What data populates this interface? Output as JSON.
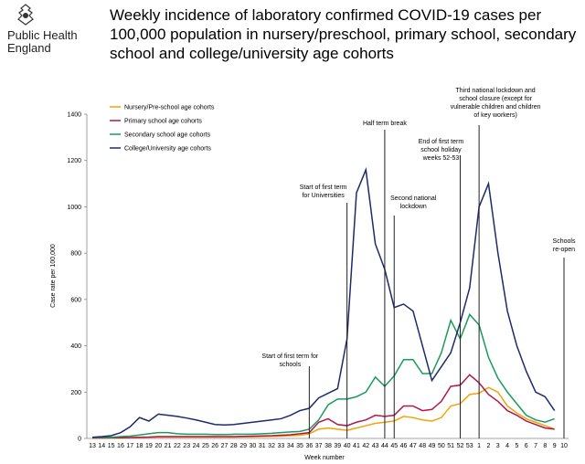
{
  "logo": {
    "lines": [
      "Public Health",
      "England"
    ]
  },
  "chart_data": {
    "type": "line",
    "title": "Weekly incidence of laboratory confirmed COVID-19 cases per 100,000 population in nursery/preschool, primary school, secondary school and college/university age cohorts",
    "ylabel": "Case rate per 100,000",
    "xlabel": "Week number",
    "categories": [
      "13",
      "14",
      "15",
      "16",
      "17",
      "18",
      "19",
      "20",
      "21",
      "22",
      "23",
      "24",
      "25",
      "26",
      "27",
      "28",
      "29",
      "30",
      "31",
      "32",
      "33",
      "34",
      "35",
      "36",
      "37",
      "38",
      "39",
      "40",
      "41",
      "42",
      "43",
      "44",
      "45",
      "46",
      "47",
      "48",
      "49",
      "50",
      "51",
      "52",
      "53",
      "1",
      "2",
      "3",
      "4",
      "5",
      "6",
      "7",
      "8",
      "9",
      "10"
    ],
    "ylim": [
      0,
      1400
    ],
    "yticks": [
      0,
      200,
      400,
      600,
      800,
      1000,
      1200,
      1400
    ],
    "grid": false,
    "legend": "upper left",
    "series": [
      {
        "name": "Nursery/Pre-school age cohorts",
        "color": "#f0a30a",
        "values": [
          1,
          1,
          2,
          2,
          3,
          4,
          5,
          6,
          6,
          6,
          6,
          6,
          6,
          6,
          6,
          6,
          7,
          7,
          8,
          9,
          10,
          12,
          14,
          20,
          40,
          45,
          40,
          35,
          45,
          55,
          65,
          70,
          75,
          95,
          90,
          80,
          75,
          90,
          140,
          150,
          190,
          195,
          220,
          200,
          140,
          110,
          85,
          70,
          55,
          40,
          null
        ]
      },
      {
        "name": "Primary school age cohorts",
        "color": "#b0174a",
        "values": [
          2,
          2,
          3,
          3,
          4,
          5,
          6,
          8,
          8,
          8,
          8,
          8,
          8,
          8,
          8,
          8,
          9,
          10,
          11,
          12,
          14,
          16,
          20,
          25,
          70,
          85,
          60,
          55,
          70,
          80,
          100,
          95,
          100,
          140,
          140,
          120,
          125,
          160,
          225,
          230,
          275,
          240,
          190,
          160,
          120,
          100,
          75,
          60,
          45,
          40,
          null
        ]
      },
      {
        "name": "Secondary school age cohorts",
        "color": "#1a9b5c",
        "values": [
          3,
          5,
          5,
          8,
          10,
          15,
          20,
          25,
          25,
          20,
          18,
          18,
          18,
          17,
          17,
          18,
          18,
          18,
          20,
          22,
          25,
          28,
          30,
          40,
          80,
          145,
          170,
          170,
          180,
          200,
          265,
          225,
          270,
          340,
          340,
          280,
          280,
          370,
          510,
          430,
          535,
          490,
          350,
          260,
          200,
          150,
          100,
          80,
          70,
          85,
          null
        ]
      },
      {
        "name": "College/University age cohorts",
        "color": "#1f2a6b",
        "values": [
          5,
          8,
          12,
          25,
          50,
          90,
          75,
          105,
          100,
          95,
          88,
          80,
          70,
          60,
          58,
          60,
          65,
          70,
          75,
          80,
          85,
          100,
          120,
          130,
          175,
          195,
          215,
          430,
          1060,
          1160,
          840,
          730,
          565,
          580,
          550,
          400,
          250,
          310,
          370,
          500,
          650,
          1000,
          1100,
          800,
          550,
          400,
          290,
          200,
          180,
          120,
          null
        ]
      }
    ],
    "annotations": [
      {
        "x": "36",
        "lines": [
          "Start of first term for",
          "schools"
        ]
      },
      {
        "x": "40",
        "lines": [
          "Start of first term",
          "for Universities"
        ]
      },
      {
        "x": "44",
        "lines": [
          "Half term break"
        ]
      },
      {
        "x": "45",
        "lines": [
          "Second national",
          "lockdown"
        ]
      },
      {
        "x": "52",
        "lines": [
          "End of first term",
          "school holiday",
          "weeks 52-53"
        ]
      },
      {
        "x": "1",
        "lines": [
          "Third national lockdown and",
          "school closure (except for",
          "vulnerable children and children",
          "of key workers)"
        ]
      },
      {
        "x": "10",
        "lines": [
          "Schools",
          "re-open"
        ]
      }
    ]
  }
}
